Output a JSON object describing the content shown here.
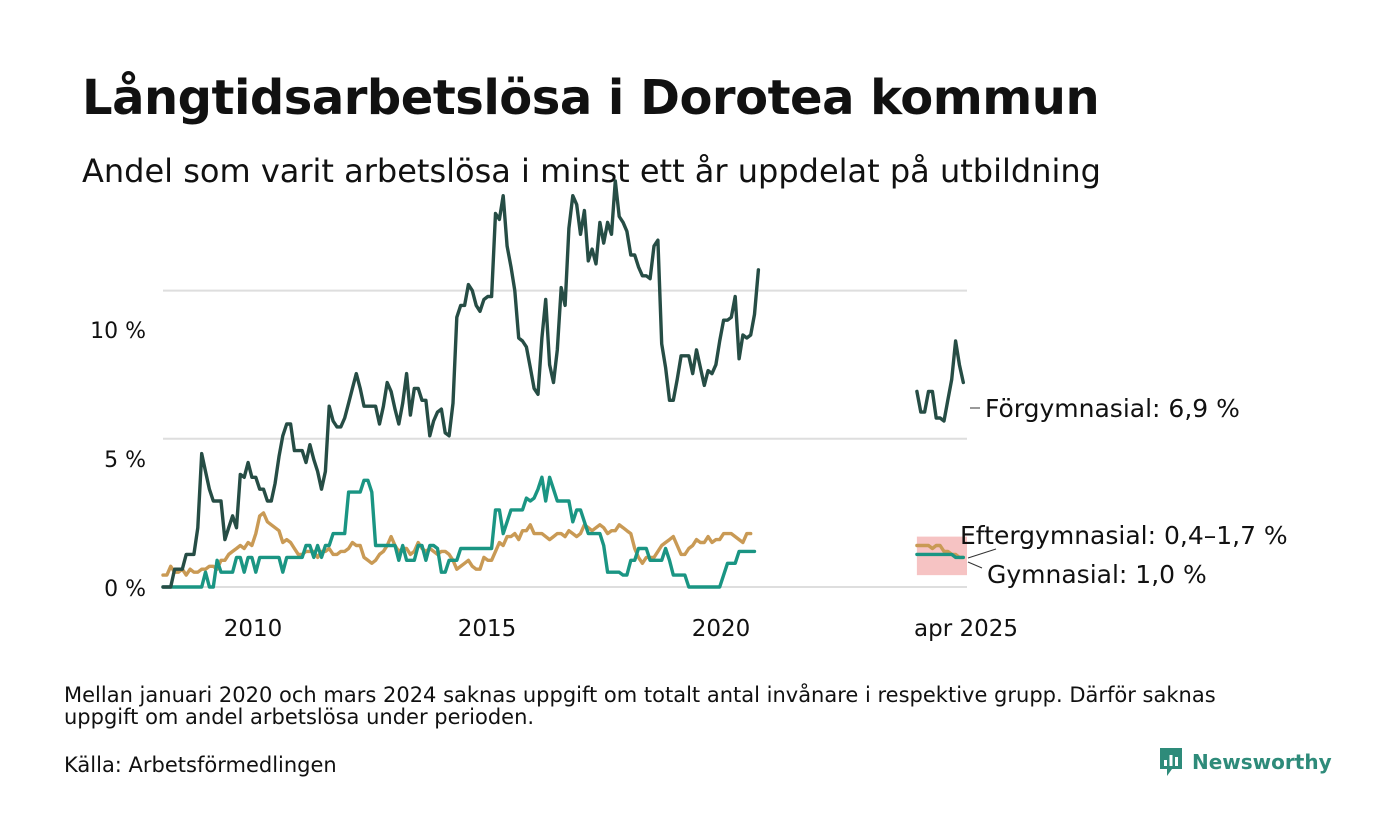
{
  "title": "Långtidsarbetslösa i Dorotea kommun",
  "subtitle": "Andel som varit arbetslösa i minst ett år uppdelat på utbildning",
  "footnote": "Mellan januari 2020 och mars 2024 saknas uppgift om totalt antal invånare i respektive grupp. Därför saknas uppgift om andel arbetslösa under perioden.",
  "source": "Källa: Arbetsförmedlingen",
  "brand": {
    "name": "Newsworthy",
    "icon": "newsworthy-logo-icon",
    "color": "#2e8b7a"
  },
  "chart_data": {
    "type": "line",
    "title": "Långtidsarbetslösa i Dorotea kommun",
    "ylim": [
      0,
      14
    ],
    "y_ticks": [
      0,
      5,
      10
    ],
    "y_tick_labels": [
      "0 %",
      "5 %",
      "10 %"
    ],
    "x_tick_labels": [
      "2010",
      "2015",
      "2020",
      "apr 2025"
    ],
    "grid": "horizontal",
    "last_value_band": {
      "label": "Eftergymnasial: 0,4–1,7 %",
      "low": 0.4,
      "high": 1.7,
      "color": "#f4b8b8"
    },
    "series": [
      {
        "name": "Förgymnasial",
        "end_label": "Förgymnasial: 6,9 %",
        "color": "#264d45",
        "segments": [
          {
            "start": "2008-01",
            "values": [
              0,
              0,
              0,
              0.6,
              0.6,
              0.6,
              1.1,
              1.1,
              1.1,
              2.0,
              4.5,
              3.9,
              3.3,
              2.9,
              2.9,
              2.9,
              1.6,
              2.0,
              2.4,
              2.0,
              3.8,
              3.7,
              4.2,
              3.7,
              3.7,
              3.3,
              3.3,
              2.9,
              2.9,
              3.5,
              4.4,
              5.1,
              5.5,
              5.5,
              4.6,
              4.6,
              4.6,
              4.2,
              4.8,
              4.3,
              3.9,
              3.3,
              3.9,
              6.1,
              5.6,
              5.4,
              5.4,
              5.7,
              6.2,
              6.7,
              7.2,
              6.7,
              6.1,
              6.1,
              6.1,
              6.1,
              5.5,
              6.1,
              6.9,
              6.6,
              6.0,
              5.5,
              6.2,
              7.2,
              5.8,
              6.7,
              6.7,
              6.3,
              6.3,
              5.1,
              5.6,
              5.9,
              6.0,
              5.2,
              5.1,
              6.2,
              9.1,
              9.5,
              9.5,
              10.2,
              10.0,
              9.5,
              9.3,
              9.7,
              9.8,
              9.8,
              12.6,
              12.4,
              13.2,
              11.5,
              10.8,
              10.0,
              8.4,
              8.3,
              8.1,
              7.4,
              6.7,
              6.5,
              8.4,
              9.7,
              7.5,
              6.9,
              8.0,
              10.1,
              9.5,
              12.1,
              13.2,
              12.9,
              11.9,
              12.7,
              11.0,
              11.4,
              10.9,
              12.3,
              11.6,
              12.3,
              11.9,
              13.7,
              12.5,
              12.3,
              12.0,
              11.2,
              11.2,
              10.8,
              10.5,
              10.5,
              10.4,
              11.5,
              11.7,
              8.2,
              7.4,
              6.3,
              6.3,
              7.0,
              7.8,
              7.8,
              7.8,
              7.2,
              8.0,
              7.4,
              6.8,
              7.3,
              7.2,
              7.5,
              8.3,
              9.0,
              9.0,
              9.1,
              9.8,
              7.7,
              8.5,
              8.4,
              8.5,
              9.2,
              10.7
            ]
          },
          {
            "start": "2024-04",
            "values": [
              6.6,
              5.9,
              5.9,
              6.6,
              6.6,
              5.7,
              5.7,
              5.6,
              6.3,
              7.0,
              8.3,
              7.5,
              6.9
            ]
          }
        ]
      },
      {
        "name": "Gymnasial",
        "end_label": "Gymnasial: 1,0 %",
        "color": "#1a9583",
        "segments": [
          {
            "start": "2008-01",
            "values": [
              0,
              0,
              0,
              0,
              0,
              0,
              0,
              0,
              0,
              0,
              0,
              0.5,
              0,
              0,
              0.9,
              0.5,
              0.5,
              0.5,
              0.5,
              1.0,
              1.0,
              0.5,
              1.0,
              1.0,
              0.5,
              1.0,
              1.0,
              1.0,
              1.0,
              1.0,
              1.0,
              0.5,
              1.0,
              1.0,
              1.0,
              1.0,
              1.0,
              1.4,
              1.4,
              1.0,
              1.4,
              1.0,
              1.4,
              1.4,
              1.8,
              1.8,
              1.8,
              1.8,
              3.2,
              3.2,
              3.2,
              3.2,
              3.6,
              3.6,
              3.2,
              1.4,
              1.4,
              1.4,
              1.4,
              1.4,
              1.4,
              0.9,
              1.4,
              0.9,
              0.9,
              0.9,
              1.4,
              1.4,
              0.9,
              1.4,
              1.4,
              1.3,
              0.5,
              0.5,
              0.9,
              0.9,
              0.9,
              1.3,
              1.3,
              1.3,
              1.3,
              1.3,
              1.3,
              1.3,
              1.3,
              1.3,
              2.6,
              2.6,
              1.8,
              2.2,
              2.6,
              2.6,
              2.6,
              2.6,
              3.0,
              2.9,
              3.0,
              3.3,
              3.7,
              2.9,
              3.7,
              3.3,
              2.9,
              2.9,
              2.9,
              2.9,
              2.2,
              2.6,
              2.6,
              2.2,
              1.8,
              1.8,
              1.8,
              1.8,
              1.4,
              0.5,
              0.5,
              0.5,
              0.5,
              0.4,
              0.4,
              0.9,
              0.9,
              1.3,
              1.3,
              1.3,
              0.9,
              0.9,
              0.9,
              0.9,
              1.3,
              0.9,
              0.4,
              0.4,
              0.4,
              0.4,
              0,
              0,
              0,
              0,
              0,
              0,
              0,
              0,
              0,
              0.4,
              0.8,
              0.8,
              0.8,
              1.2,
              1.2,
              1.2,
              1.2,
              1.2
            ]
          },
          {
            "start": "2024-04",
            "values": [
              1.1,
              1.1,
              1.1,
              1.1,
              1.1,
              1.1,
              1.1,
              1.1,
              1.1,
              1.1,
              1.0,
              1.0,
              1.0
            ]
          }
        ]
      },
      {
        "name": "Eftergymnasial",
        "end_label": "Eftergymnasial: 0,4–1,7 %",
        "color": "#c99a55",
        "segments": [
          {
            "start": "2008-01",
            "values": [
              0.4,
              0.4,
              0.7,
              0.5,
              0.5,
              0.6,
              0.4,
              0.6,
              0.5,
              0.5,
              0.6,
              0.6,
              0.7,
              0.7,
              0.6,
              0.9,
              0.9,
              1.1,
              1.2,
              1.3,
              1.4,
              1.3,
              1.5,
              1.4,
              1.8,
              2.4,
              2.5,
              2.2,
              2.1,
              2.0,
              1.9,
              1.5,
              1.6,
              1.5,
              1.3,
              1.1,
              1.1,
              1.2,
              1.2,
              1.2,
              1.0,
              1.2,
              1.2,
              1.3,
              1.1,
              1.1,
              1.2,
              1.2,
              1.3,
              1.5,
              1.4,
              1.4,
              1.0,
              0.9,
              0.8,
              0.9,
              1.1,
              1.2,
              1.4,
              1.7,
              1.4,
              1.2,
              1.3,
              1.3,
              1.1,
              1.2,
              1.5,
              1.3,
              1.2,
              1.3,
              1.2,
              1.1,
              1.2,
              1.2,
              1.1,
              0.9,
              0.6,
              0.7,
              0.8,
              0.9,
              0.7,
              0.6,
              0.6,
              1.0,
              0.9,
              0.9,
              1.2,
              1.5,
              1.4,
              1.7,
              1.7,
              1.8,
              1.6,
              1.9,
              1.9,
              2.1,
              1.8,
              1.8,
              1.8,
              1.7,
              1.6,
              1.7,
              1.8,
              1.8,
              1.7,
              1.9,
              1.8,
              1.7,
              1.8,
              2.1,
              2.0,
              1.9,
              2.0,
              2.1,
              2.0,
              1.8,
              1.9,
              1.9,
              2.1,
              2.0,
              1.9,
              1.8,
              1.3,
              1.0,
              0.8,
              1.0,
              1.0,
              1.0,
              1.2,
              1.4,
              1.5,
              1.6,
              1.7,
              1.4,
              1.1,
              1.1,
              1.3,
              1.4,
              1.6,
              1.5,
              1.5,
              1.7,
              1.5,
              1.6,
              1.6,
              1.8,
              1.8,
              1.8,
              1.7,
              1.6,
              1.5,
              1.8,
              1.8
            ]
          },
          {
            "start": "2024-04",
            "values": [
              1.4,
              1.4,
              1.4,
              1.4,
              1.3,
              1.4,
              1.4,
              1.2,
              1.2,
              1.1,
              1.1,
              1.0,
              1.0
            ]
          }
        ]
      }
    ]
  }
}
